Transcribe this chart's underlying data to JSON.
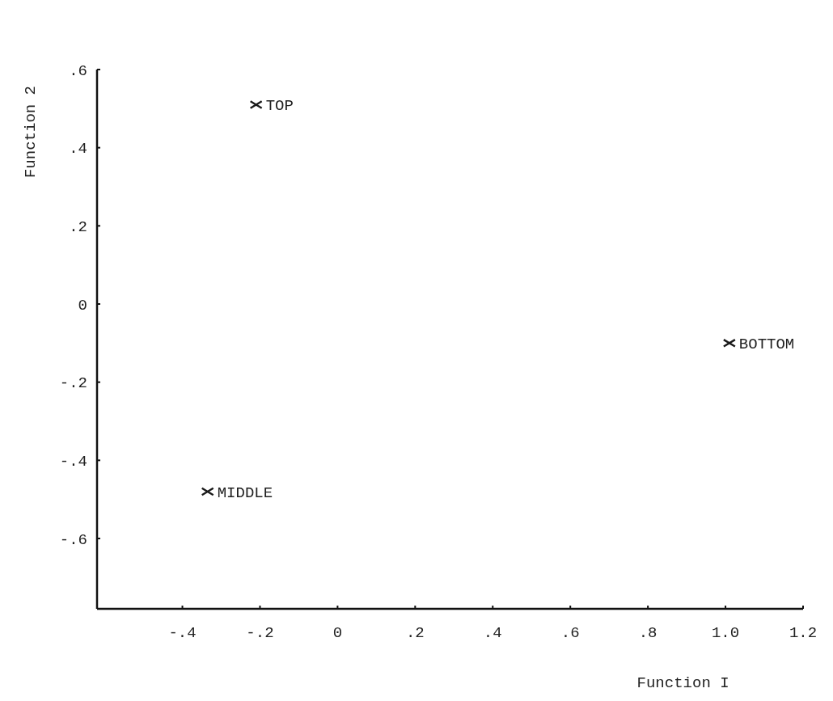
{
  "chart_data": {
    "type": "scatter",
    "xlabel": "Function I",
    "ylabel": "Function 2",
    "x": [
      -0.21,
      -0.335,
      1.01
    ],
    "series": [
      {
        "color": "#1a1a1a",
        "values": [
          0.51,
          -0.48,
          -0.1
        ]
      }
    ],
    "annotations": [
      {
        "text": "TOP",
        "x": -0.21,
        "y": 0.51
      },
      {
        "text": "MIDDLE",
        "x": -0.335,
        "y": -0.48
      },
      {
        "text": "BOTTOM",
        "x": 1.01,
        "y": -0.1
      }
    ],
    "xlim": [
      -0.62,
      1.2
    ],
    "ylim": [
      -0.78,
      0.6
    ],
    "xticks": [
      {
        "value": -0.4,
        "label": "-.4"
      },
      {
        "value": -0.2,
        "label": "-.2"
      },
      0,
      {
        "value": 0.2,
        "label": ".2"
      },
      {
        "value": 0.4,
        "label": ".4"
      },
      {
        "value": 0.6,
        "label": ".6"
      },
      {
        "value": 0.8,
        "label": ".8"
      },
      {
        "value": 1.0,
        "label": "1.0"
      },
      {
        "value": 1.2,
        "label": "1.2"
      }
    ],
    "yticks": [
      {
        "value": -0.6,
        "label": "-.6"
      },
      {
        "value": -0.4,
        "label": "-.4"
      },
      {
        "value": -0.2,
        "label": "-.2"
      },
      0,
      {
        "value": 0.2,
        "label": ".2"
      },
      {
        "value": 0.4,
        "label": ".4"
      },
      {
        "value": 0.6,
        "label": ".6"
      }
    ],
    "marker": "cross",
    "grid": false
  }
}
